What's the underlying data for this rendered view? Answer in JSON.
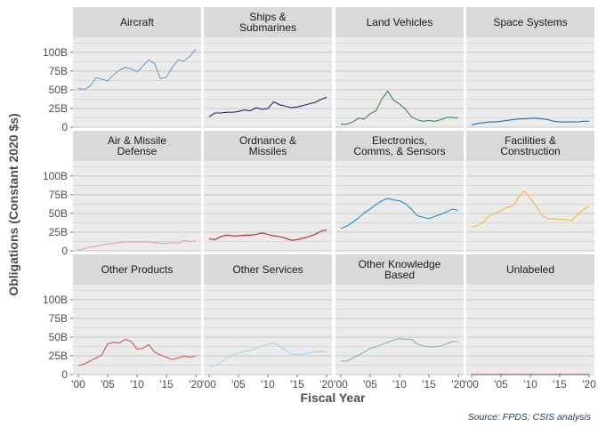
{
  "chart_data": {
    "type": "line",
    "layout": "facet-grid-3x4",
    "xlabel": "Fiscal Year",
    "ylabel": "Obligations (Constant 2020 $s)",
    "caption": "Source: FPDS; CSIS analysis",
    "x_range": [
      2000,
      2020
    ],
    "x_ticks": [
      2000,
      2005,
      2010,
      2015,
      2020
    ],
    "x_tick_labels": [
      "'00",
      "'05",
      "'10",
      "'15",
      "'20"
    ],
    "y_range": [
      0,
      120
    ],
    "y_ticks": [
      0,
      25,
      50,
      75,
      100
    ],
    "y_tick_labels": [
      "0",
      "25B",
      "50B",
      "75B",
      "100B"
    ],
    "y_unit": "billions USD",
    "grid": "horizontal",
    "panels": [
      {
        "label": "Aircraft",
        "color": "#6a9fd4",
        "x": [
          2000,
          2001,
          2002,
          2003,
          2004,
          2005,
          2006,
          2007,
          2008,
          2009,
          2010,
          2011,
          2012,
          2013,
          2014,
          2015,
          2016,
          2017,
          2018,
          2019,
          2020
        ],
        "values": [
          52,
          50,
          55,
          66,
          64,
          62,
          70,
          76,
          80,
          78,
          74,
          82,
          90,
          85,
          65,
          67,
          80,
          90,
          88,
          95,
          104
        ]
      },
      {
        "label": "Ships & Submarines",
        "color": "#1a2a6c",
        "x": [
          2000,
          2001,
          2002,
          2003,
          2004,
          2005,
          2006,
          2007,
          2008,
          2009,
          2010,
          2011,
          2012,
          2013,
          2014,
          2015,
          2016,
          2017,
          2018,
          2019,
          2020
        ],
        "values": [
          14,
          19,
          19,
          20,
          20,
          21,
          23,
          22,
          26,
          24,
          25,
          34,
          30,
          28,
          26,
          27,
          29,
          31,
          33,
          37,
          40
        ]
      },
      {
        "label": "Land Vehicles",
        "color": "#3d8a4f",
        "x": [
          2000,
          2001,
          2002,
          2003,
          2004,
          2005,
          2006,
          2007,
          2008,
          2009,
          2010,
          2011,
          2012,
          2013,
          2014,
          2015,
          2016,
          2017,
          2018,
          2019,
          2020
        ],
        "values": [
          4,
          4,
          7,
          12,
          11,
          18,
          22,
          38,
          48,
          36,
          31,
          24,
          14,
          10,
          8,
          9,
          8,
          10,
          13,
          13,
          12
        ]
      },
      {
        "label": "Space Systems",
        "color": "#1f6fb5",
        "x": [
          2000,
          2001,
          2002,
          2003,
          2004,
          2005,
          2006,
          2007,
          2008,
          2009,
          2010,
          2011,
          2012,
          2013,
          2014,
          2015,
          2016,
          2017,
          2018,
          2019,
          2020
        ],
        "values": [
          3,
          5,
          6,
          7,
          7,
          8,
          9,
          10,
          11,
          11,
          12,
          12,
          11,
          10,
          8,
          7,
          7,
          7,
          7,
          8,
          8
        ]
      },
      {
        "label": "Air & Missile Defense",
        "color": "#e8a0b0",
        "x": [
          2000,
          2001,
          2002,
          2003,
          2004,
          2005,
          2006,
          2007,
          2008,
          2009,
          2010,
          2011,
          2012,
          2013,
          2014,
          2015,
          2016,
          2017,
          2018,
          2019,
          2020
        ],
        "values": [
          1,
          3,
          5,
          6,
          8,
          9,
          10,
          11,
          12,
          12,
          12,
          12,
          12,
          11,
          10,
          10,
          11,
          10,
          14,
          12,
          14
        ]
      },
      {
        "label": "Ordnance & Missiles",
        "color": "#b22222",
        "x": [
          2000,
          2001,
          2002,
          2003,
          2004,
          2005,
          2006,
          2007,
          2008,
          2009,
          2010,
          2011,
          2012,
          2013,
          2014,
          2015,
          2016,
          2017,
          2018,
          2019,
          2020
        ],
        "values": [
          16,
          15,
          19,
          21,
          20,
          20,
          21,
          21,
          22,
          24,
          22,
          20,
          19,
          17,
          14,
          15,
          17,
          19,
          22,
          26,
          28
        ]
      },
      {
        "label": "Electronics, Comms, & Sensors",
        "color": "#1e90d6",
        "x": [
          2000,
          2001,
          2002,
          2003,
          2004,
          2005,
          2006,
          2007,
          2008,
          2009,
          2010,
          2011,
          2012,
          2013,
          2014,
          2015,
          2016,
          2017,
          2018,
          2019,
          2020
        ],
        "values": [
          30,
          33,
          38,
          44,
          51,
          56,
          62,
          67,
          70,
          68,
          67,
          63,
          56,
          47,
          45,
          43,
          46,
          49,
          52,
          56,
          54
        ]
      },
      {
        "label": "Facilities & Construction",
        "color": "#f5b942",
        "x": [
          2000,
          2001,
          2002,
          2003,
          2004,
          2005,
          2006,
          2007,
          2008,
          2009,
          2010,
          2011,
          2012,
          2013,
          2014,
          2015,
          2016,
          2017,
          2018,
          2019,
          2020
        ],
        "values": [
          31,
          34,
          38,
          47,
          50,
          54,
          58,
          60,
          72,
          80,
          70,
          60,
          47,
          43,
          43,
          42,
          42,
          40,
          48,
          55,
          60
        ]
      },
      {
        "label": "Other Products",
        "color": "#d9534f",
        "x": [
          2000,
          2001,
          2002,
          2003,
          2004,
          2005,
          2006,
          2007,
          2008,
          2009,
          2010,
          2011,
          2012,
          2013,
          2014,
          2015,
          2016,
          2017,
          2018,
          2019,
          2020
        ],
        "values": [
          12,
          14,
          18,
          22,
          26,
          41,
          43,
          42,
          47,
          44,
          34,
          35,
          40,
          30,
          26,
          23,
          20,
          22,
          25,
          23,
          25
        ]
      },
      {
        "label": "Other Services",
        "color": "#a6d8e6",
        "x": [
          2000,
          2001,
          2002,
          2003,
          2004,
          2005,
          2006,
          2007,
          2008,
          2009,
          2010,
          2011,
          2012,
          2013,
          2014,
          2015,
          2016,
          2017,
          2018,
          2019,
          2020
        ],
        "values": [
          10,
          12,
          16,
          22,
          26,
          29,
          31,
          32,
          35,
          38,
          40,
          42,
          38,
          33,
          27,
          27,
          27,
          29,
          30,
          31,
          30
        ]
      },
      {
        "label": "Other Knowledge Based",
        "color": "#7cc08a",
        "x": [
          2000,
          2001,
          2002,
          2003,
          2004,
          2005,
          2006,
          2007,
          2008,
          2009,
          2010,
          2011,
          2012,
          2013,
          2014,
          2015,
          2016,
          2017,
          2018,
          2019,
          2020
        ],
        "values": [
          18,
          18,
          22,
          26,
          30,
          35,
          37,
          40,
          43,
          46,
          48,
          47,
          47,
          41,
          38,
          37,
          37,
          38,
          41,
          44,
          44
        ]
      },
      {
        "label": "Unlabeled",
        "color": "#8b3a3a",
        "x": [
          2000,
          2001,
          2002,
          2003,
          2004,
          2005,
          2006,
          2007,
          2008,
          2009,
          2010,
          2011,
          2012,
          2013,
          2014,
          2015,
          2016,
          2017,
          2018,
          2019,
          2020
        ],
        "values": [
          0,
          0,
          0,
          0,
          0,
          0,
          0,
          0,
          0,
          0,
          0,
          0,
          0,
          0,
          0,
          0,
          0,
          0,
          0,
          0,
          0
        ]
      }
    ]
  },
  "panel_colors": {
    "panel_background": "#ebebeb",
    "strip_background": "#d9d9d9",
    "gridline": "#c4c4c4"
  }
}
